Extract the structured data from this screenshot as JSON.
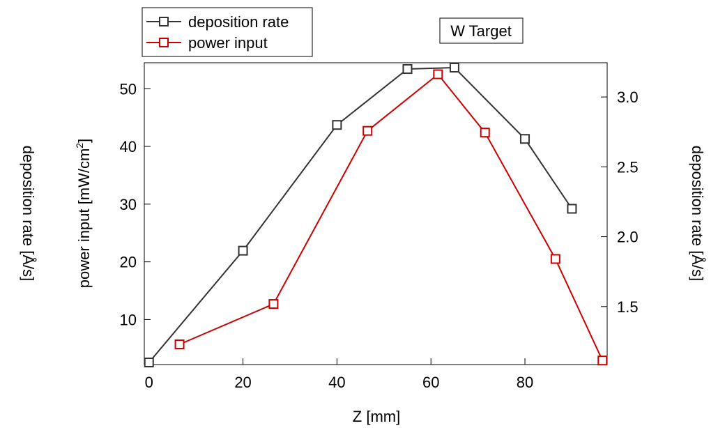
{
  "chart_data": {
    "type": "line",
    "title": "W Target",
    "xlabel": "Z [mm]",
    "ylabel_left": "power input [mW/cm",
    "ylabel_left_sup": "2",
    "ylabel_left_tail": "]",
    "ylabel_far_left": "deposition rate [Å/s]",
    "ylabel_right": "deposition rate [Å/s]",
    "xlim": [
      -1,
      97.5
    ],
    "ylim_left": [
      2.2,
      54.5
    ],
    "ylim_right": [
      1.085,
      3.245
    ],
    "x_ticks": [
      "0",
      "20",
      "40",
      "60",
      "80"
    ],
    "y_left_ticks": [
      "10",
      "20",
      "30",
      "40",
      "50"
    ],
    "y_right_ticks": [
      "1.5",
      "2.0",
      "2.5",
      "3.0"
    ],
    "legend_position": "top-left",
    "series": [
      {
        "name": "deposition rate",
        "axis": "right",
        "color": "#333333",
        "marker": "open-square",
        "x": [
          0,
          20,
          40,
          55,
          65,
          80,
          90
        ],
        "y": [
          1.1,
          1.9,
          2.8,
          3.2,
          3.21,
          2.7,
          2.2
        ]
      },
      {
        "name": "power input",
        "axis": "left",
        "color": "#cc0000",
        "marker": "open-square",
        "x": [
          6.5,
          26.5,
          46.5,
          61.5,
          71.5,
          86.5,
          96.5
        ],
        "y": [
          5.7,
          12.7,
          42.7,
          52.5,
          42.4,
          20.5,
          2.9
        ]
      }
    ]
  }
}
